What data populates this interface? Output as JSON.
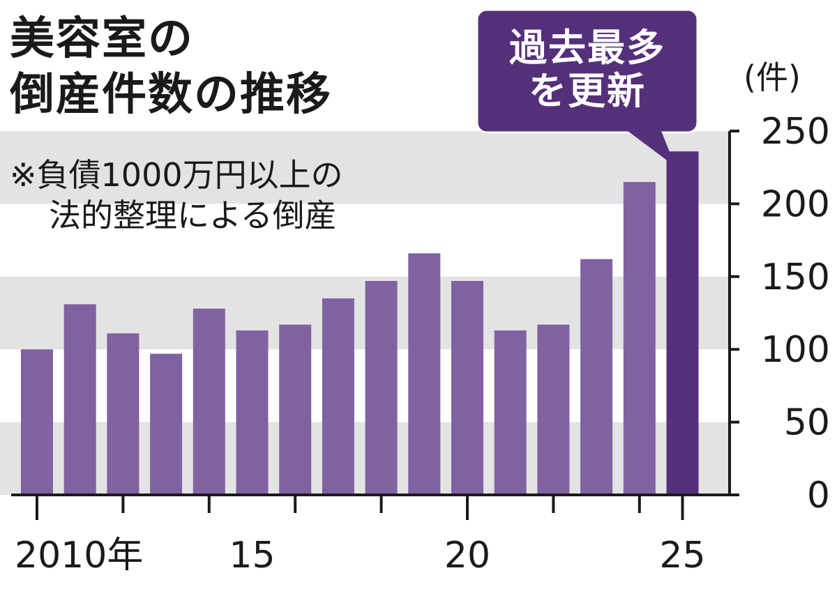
{
  "title": [
    "美容室の",
    "倒産件数の推移"
  ],
  "note": [
    "※負債1000万円以上の",
    "法的整理による倒産"
  ],
  "callout": [
    "過去最多",
    "を更新"
  ],
  "colors": {
    "bar": "#8062a2",
    "highlight": "#55307a",
    "band": "#e3e3e3",
    "axis": "#1a1a1a"
  },
  "chart_data": {
    "type": "bar",
    "categories": [
      "2010",
      "2011",
      "2012",
      "2013",
      "2014",
      "2015",
      "2016",
      "2017",
      "2018",
      "2019",
      "2020",
      "2021",
      "2022",
      "2023",
      "2024",
      "2025"
    ],
    "values": [
      100,
      131,
      111,
      97,
      128,
      113,
      117,
      135,
      147,
      166,
      147,
      113,
      117,
      162,
      215,
      236
    ],
    "highlight_index": 15,
    "ylim": [
      0,
      250
    ],
    "yticks": [
      0,
      50,
      100,
      150,
      200,
      250
    ],
    "ylabel": "(件)",
    "xtick_labels": [
      {
        "index": 0,
        "label": "2010年"
      },
      {
        "index": 5,
        "label": "15"
      },
      {
        "index": 10,
        "label": "20"
      },
      {
        "index": 15,
        "label": "25"
      }
    ],
    "y_axis_side": "right",
    "grid_bands": true
  }
}
